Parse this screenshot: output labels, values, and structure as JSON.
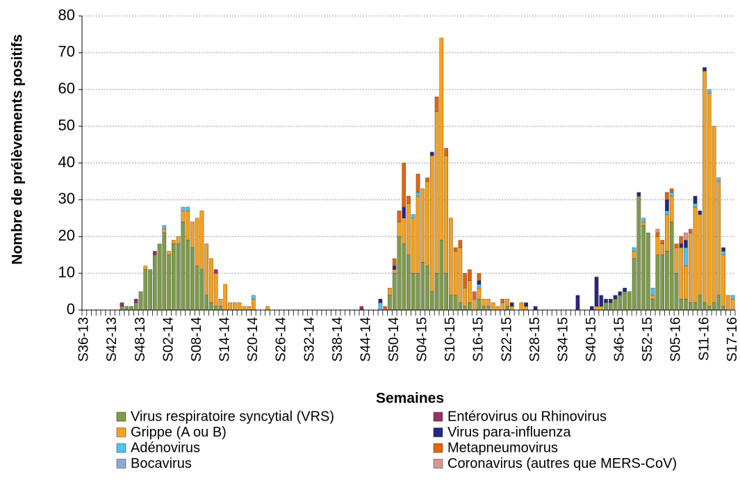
{
  "chart_data": {
    "type": "stacked_bar",
    "y_label": "Nombre de prélèvements positifs",
    "x_label": "Semaines",
    "categories": [
      "S36-13",
      null,
      null,
      null,
      null,
      null,
      "S42-13",
      null,
      null,
      null,
      null,
      null,
      "S48-13",
      null,
      null,
      null,
      null,
      null,
      "S02-14",
      null,
      null,
      null,
      null,
      null,
      "S08-14",
      null,
      null,
      null,
      null,
      null,
      "S14-14",
      null,
      null,
      null,
      null,
      null,
      "S20-14",
      null,
      null,
      null,
      null,
      null,
      "S26-14",
      null,
      null,
      null,
      null,
      null,
      "S32-14",
      null,
      null,
      null,
      null,
      null,
      "S38-14",
      null,
      null,
      null,
      null,
      null,
      "S44-14",
      null,
      null,
      null,
      null,
      null,
      "S50-14",
      null,
      null,
      null,
      null,
      null,
      "S04-15",
      null,
      null,
      null,
      null,
      null,
      "S10-15",
      null,
      null,
      null,
      null,
      null,
      "S16-15",
      null,
      null,
      null,
      null,
      null,
      "S22-15",
      null,
      null,
      null,
      null,
      null,
      "S28-15",
      null,
      null,
      null,
      null,
      null,
      "S34-15",
      null,
      null,
      null,
      null,
      null,
      "S40-15",
      null,
      null,
      null,
      null,
      null,
      "S46-15",
      null,
      null,
      null,
      null,
      null,
      "S52-15",
      null,
      null,
      null,
      null,
      null,
      "S05-16",
      null,
      null,
      null,
      null,
      null,
      "S11-16",
      null,
      null,
      null,
      null,
      null,
      "S17-16"
    ],
    "series": [
      {
        "name": "Virus respiratoire syncytial (VRS)",
        "color": "#7e9c4a",
        "values": [
          0,
          0,
          0,
          0,
          0,
          0,
          0,
          0,
          1,
          1,
          1,
          2,
          5,
          11,
          11,
          15,
          18,
          21,
          15,
          18,
          18,
          24,
          19,
          17,
          12,
          11,
          4,
          2,
          1,
          1,
          0,
          0,
          0,
          0,
          0,
          0,
          0,
          0,
          0,
          0,
          0,
          0,
          0,
          0,
          0,
          0,
          0,
          0,
          0,
          0,
          0,
          0,
          0,
          0,
          0,
          0,
          0,
          0,
          0,
          0,
          0,
          0,
          0,
          0,
          0,
          4,
          10,
          20,
          18,
          15,
          10,
          10,
          13,
          12,
          5,
          10,
          19,
          10,
          4,
          4,
          2,
          1,
          2,
          0,
          3,
          1,
          1,
          0,
          0,
          0,
          1,
          0,
          0,
          0,
          0,
          0,
          0,
          0,
          0,
          0,
          0,
          0,
          0,
          0,
          0,
          0,
          0,
          0,
          0,
          0,
          0,
          2,
          2,
          3,
          4,
          5,
          5,
          14,
          31,
          23,
          21,
          3,
          15,
          15,
          16,
          24,
          10,
          3,
          3,
          2,
          2,
          4,
          2,
          1,
          2,
          4,
          1,
          0,
          0
        ]
      },
      {
        "name": "Grippe (A ou B)",
        "color": "#f7a11c",
        "values": [
          0,
          0,
          0,
          0,
          0,
          0,
          0,
          0,
          0,
          0,
          0,
          0,
          0,
          1,
          0,
          0,
          0,
          1,
          1,
          1,
          2,
          3,
          8,
          7,
          13,
          16,
          14,
          12,
          9,
          2,
          7,
          2,
          2,
          2,
          1,
          1,
          3,
          0,
          0,
          1,
          0,
          0,
          0,
          0,
          0,
          0,
          0,
          0,
          0,
          0,
          0,
          0,
          0,
          0,
          0,
          0,
          0,
          0,
          0,
          0,
          0,
          0,
          0,
          0,
          0,
          2,
          1,
          4,
          7,
          14,
          15,
          21,
          20,
          23,
          37,
          44,
          55,
          32,
          21,
          12,
          15,
          5,
          6,
          3,
          3,
          2,
          2,
          2,
          1,
          2,
          2,
          1,
          0,
          2,
          1,
          0,
          0,
          0,
          0,
          0,
          0,
          0,
          0,
          0,
          0,
          0,
          0,
          0,
          0,
          1,
          1,
          0,
          0,
          0,
          0,
          0,
          0,
          2,
          0,
          1,
          0,
          1,
          5,
          3,
          10,
          7,
          7,
          14,
          9,
          19,
          26,
          22,
          63,
          58,
          48,
          31,
          14,
          4,
          3
        ]
      },
      {
        "name": "Adénovirus",
        "color": "#4fc3f0",
        "values": [
          0,
          0,
          0,
          0,
          0,
          0,
          0,
          0,
          0,
          0,
          0,
          0,
          0,
          0,
          0,
          0,
          0,
          1,
          0,
          0,
          0,
          1,
          1,
          0,
          0,
          0,
          0,
          0,
          0,
          0,
          0,
          0,
          0,
          0,
          0,
          0,
          1,
          0,
          0,
          0,
          0,
          0,
          0,
          0,
          0,
          0,
          0,
          0,
          0,
          0,
          0,
          0,
          0,
          0,
          0,
          0,
          0,
          0,
          0,
          0,
          0,
          0,
          0,
          2,
          0,
          0,
          0,
          0,
          0,
          0,
          1,
          1,
          0,
          0,
          0,
          0,
          0,
          0,
          0,
          0,
          0,
          0,
          0,
          0,
          1,
          0,
          0,
          0,
          0,
          0,
          0,
          0,
          0,
          0,
          0,
          0,
          0,
          0,
          0,
          0,
          0,
          0,
          0,
          0,
          0,
          0,
          0,
          0,
          0,
          0,
          0,
          0,
          0,
          0,
          0,
          0,
          0,
          1,
          0,
          1,
          0,
          2,
          0,
          0,
          1,
          1,
          0,
          0,
          5,
          0,
          1,
          0,
          0,
          1,
          0,
          1,
          1,
          0,
          1
        ]
      },
      {
        "name": "Bocavirus",
        "color": "#8fa8d8",
        "values": [
          0,
          0,
          0,
          0,
          0,
          0,
          0,
          0,
          0,
          0,
          0,
          0,
          0,
          0,
          0,
          0,
          0,
          0,
          0,
          0,
          0,
          0,
          0,
          0,
          0,
          0,
          0,
          0,
          0,
          0,
          0,
          0,
          0,
          0,
          0,
          0,
          0,
          0,
          0,
          0,
          0,
          0,
          0,
          0,
          0,
          0,
          0,
          0,
          0,
          0,
          0,
          0,
          0,
          0,
          0,
          0,
          0,
          0,
          0,
          0,
          0,
          0,
          0,
          0,
          0,
          0,
          0,
          0,
          0,
          0,
          0,
          0,
          0,
          0,
          0,
          0,
          0,
          0,
          0,
          0,
          0,
          0,
          0,
          0,
          0,
          0,
          0,
          0,
          0,
          0,
          0,
          0,
          0,
          0,
          0,
          0,
          0,
          0,
          0,
          0,
          0,
          0,
          0,
          0,
          0,
          0,
          0,
          0,
          0,
          0,
          0,
          0,
          0,
          0,
          0,
          0,
          0,
          0,
          0,
          0,
          0,
          0,
          0,
          0,
          0,
          0,
          0,
          0,
          0,
          0,
          0,
          0,
          0,
          0,
          0,
          0,
          0,
          0,
          0
        ]
      },
      {
        "name": "Entérovirus ou Rhinovirus",
        "color": "#953263",
        "values": [
          0,
          0,
          0,
          0,
          0,
          0,
          0,
          0,
          1,
          0,
          0,
          1,
          0,
          0,
          0,
          1,
          0,
          0,
          0,
          0,
          0,
          0,
          0,
          0,
          0,
          0,
          0,
          0,
          1,
          0,
          0,
          0,
          0,
          0,
          0,
          0,
          0,
          0,
          0,
          0,
          0,
          0,
          0,
          0,
          0,
          0,
          0,
          0,
          0,
          0,
          0,
          0,
          0,
          0,
          0,
          0,
          0,
          0,
          0,
          1,
          0,
          0,
          0,
          0,
          0,
          0,
          0,
          0,
          0,
          0,
          0,
          0,
          0,
          0,
          0,
          0,
          0,
          0,
          0,
          0,
          0,
          0,
          0,
          0,
          0,
          0,
          0,
          0,
          0,
          0,
          0,
          0,
          0,
          0,
          0,
          0,
          0,
          0,
          0,
          0,
          0,
          0,
          0,
          0,
          0,
          0,
          0,
          0,
          0,
          0,
          0,
          0,
          0,
          0,
          0,
          0,
          0,
          0,
          0,
          0,
          0,
          0,
          0,
          0,
          0,
          0,
          0,
          0,
          0,
          0,
          0,
          0,
          0,
          0,
          0,
          0,
          0,
          0,
          0
        ]
      },
      {
        "name": "Virus para-influenza",
        "color": "#27267f",
        "values": [
          0,
          0,
          0,
          0,
          0,
          0,
          0,
          0,
          0,
          0,
          0,
          0,
          0,
          0,
          0,
          0,
          0,
          0,
          0,
          0,
          0,
          0,
          0,
          0,
          0,
          0,
          0,
          0,
          0,
          0,
          0,
          0,
          0,
          0,
          0,
          0,
          0,
          0,
          0,
          0,
          0,
          0,
          0,
          0,
          0,
          0,
          0,
          0,
          0,
          0,
          0,
          0,
          0,
          0,
          0,
          0,
          0,
          0,
          0,
          0,
          0,
          0,
          0,
          1,
          0,
          0,
          1,
          0,
          3,
          0,
          0,
          0,
          0,
          0,
          1,
          0,
          0,
          0,
          0,
          0,
          0,
          0,
          0,
          0,
          1,
          0,
          0,
          0,
          0,
          0,
          0,
          1,
          0,
          0,
          1,
          0,
          1,
          0,
          0,
          0,
          0,
          0,
          0,
          0,
          0,
          4,
          0,
          0,
          1,
          8,
          3,
          1,
          1,
          1,
          1,
          1,
          0,
          0,
          1,
          0,
          0,
          0,
          0,
          0,
          3,
          0,
          0,
          1,
          2,
          0,
          2,
          1,
          1,
          0,
          0,
          0,
          1,
          0,
          0
        ]
      },
      {
        "name": "Metapneumovirus",
        "color": "#e4650c",
        "values": [
          0,
          0,
          0,
          0,
          0,
          0,
          0,
          0,
          0,
          0,
          0,
          0,
          0,
          0,
          0,
          0,
          0,
          0,
          0,
          0,
          0,
          0,
          0,
          0,
          0,
          0,
          0,
          0,
          0,
          0,
          0,
          0,
          0,
          0,
          0,
          0,
          0,
          0,
          0,
          0,
          0,
          0,
          0,
          0,
          0,
          0,
          0,
          0,
          0,
          0,
          0,
          0,
          0,
          0,
          0,
          0,
          0,
          0,
          0,
          0,
          0,
          0,
          0,
          0,
          1,
          0,
          2,
          3,
          12,
          2,
          0,
          5,
          0,
          1,
          0,
          4,
          0,
          2,
          0,
          1,
          2,
          4,
          3,
          2,
          2,
          0,
          0,
          0,
          0,
          1,
          0,
          0,
          0,
          0,
          0,
          0,
          0,
          0,
          0,
          0,
          0,
          0,
          0,
          0,
          0,
          0,
          0,
          0,
          0,
          0,
          0,
          0,
          0,
          0,
          0,
          0,
          0,
          0,
          0,
          0,
          0,
          0,
          1,
          1,
          2,
          1,
          1,
          2,
          0,
          1,
          0,
          0,
          0,
          0,
          0,
          0,
          0,
          0,
          0
        ]
      },
      {
        "name": "Coronavirus (autres que MERS-CoV)",
        "color": "#d99694",
        "values": [
          0,
          0,
          0,
          0,
          0,
          0,
          0,
          0,
          0,
          0,
          0,
          0,
          0,
          0,
          0,
          0,
          0,
          0,
          0,
          0,
          0,
          0,
          0,
          0,
          0,
          0,
          0,
          0,
          0,
          0,
          0,
          0,
          0,
          0,
          0,
          0,
          0,
          0,
          0,
          0,
          0,
          0,
          0,
          0,
          0,
          0,
          0,
          0,
          0,
          0,
          0,
          0,
          0,
          0,
          0,
          0,
          0,
          0,
          0,
          0,
          0,
          0,
          0,
          0,
          0,
          0,
          0,
          0,
          0,
          0,
          0,
          0,
          0,
          0,
          0,
          0,
          0,
          0,
          0,
          0,
          0,
          0,
          0,
          0,
          0,
          0,
          0,
          0,
          0,
          0,
          0,
          0,
          0,
          0,
          0,
          0,
          0,
          0,
          0,
          0,
          0,
          0,
          0,
          0,
          0,
          0,
          0,
          0,
          0,
          0,
          0,
          0,
          0,
          0,
          0,
          0,
          0,
          0,
          0,
          0,
          0,
          0,
          1,
          0,
          0,
          0,
          0,
          0,
          2,
          0,
          0,
          0,
          0,
          0,
          0,
          0,
          0,
          0,
          0
        ]
      }
    ],
    "ylim": [
      0,
      80
    ],
    "yticks": [
      0,
      10,
      20,
      30,
      40,
      50,
      60,
      70,
      80
    ],
    "grid": true,
    "legend": "bottom"
  }
}
